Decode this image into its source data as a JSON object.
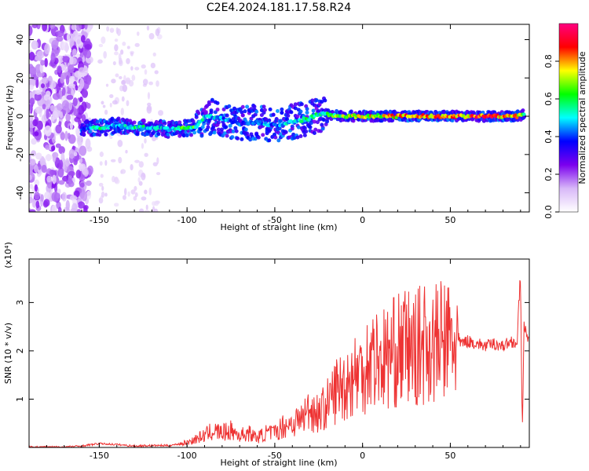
{
  "title": "C2E4.2024.181.17.58.R24",
  "chart_data": [
    {
      "type": "heatmap",
      "xlabel": "Height of straight line (km)",
      "ylabel": "Frequency (Hz)",
      "xlim": [
        -190,
        95
      ],
      "ylim": [
        -50,
        48
      ],
      "xticks": [
        -150,
        -100,
        -50,
        0,
        50
      ],
      "yticks": [
        -40,
        -20,
        0,
        20,
        40
      ],
      "colorbar": {
        "label": "Normalized spectral amplitude",
        "range": [
          0,
          1
        ],
        "ticks": [
          0.0,
          0.2,
          0.4,
          0.6,
          0.8
        ],
        "colormap": [
          "#ffffff",
          "#d8b8f8",
          "#7b00ee",
          "#0000ff",
          "#00ffff",
          "#00ff00",
          "#ffff00",
          "#ff0000",
          "#ff0080"
        ]
      },
      "ridge": {
        "x": [
          -160,
          -150,
          -140,
          -130,
          -120,
          -110,
          -100,
          -95,
          -90,
          -80,
          -70,
          -60,
          -50,
          -40,
          -30,
          -25,
          -20,
          -10,
          0,
          10,
          20,
          30,
          40,
          50,
          60,
          70,
          80,
          88,
          92
        ],
        "y": [
          -6,
          -6,
          -5,
          -6,
          -6,
          -7,
          -6,
          -6,
          0,
          -1,
          -4,
          -3,
          -5,
          -3,
          -1,
          1,
          1,
          0,
          0,
          0,
          0,
          0,
          0,
          0,
          0,
          0,
          0,
          0,
          1
        ],
        "amplitude": [
          0.35,
          0.55,
          0.45,
          0.55,
          0.5,
          0.5,
          0.65,
          0.6,
          0.5,
          0.45,
          0.4,
          0.45,
          0.45,
          0.5,
          0.55,
          0.55,
          0.6,
          0.7,
          0.75,
          0.75,
          0.8,
          0.85,
          0.85,
          0.85,
          0.85,
          0.85,
          0.85,
          0.85,
          0.5
        ]
      }
    },
    {
      "type": "line",
      "xlabel": "Height of straight line (km)",
      "ylabel": "SNR (10 * v/v)",
      "multiplier": "(x10⁴)",
      "xlim": [
        -190,
        95
      ],
      "ylim": [
        0,
        3.9
      ],
      "xticks": [
        -150,
        -100,
        -50,
        0,
        50
      ],
      "yticks": [
        1,
        2,
        3
      ],
      "color": "#ee3333",
      "x": [
        -190,
        -170,
        -160,
        -150,
        -140,
        -130,
        -120,
        -110,
        -100,
        -90,
        -85,
        -80,
        -75,
        -70,
        -65,
        -60,
        -55,
        -50,
        -45,
        -40,
        -35,
        -30,
        -25,
        -20,
        -15,
        -10,
        -5,
        0,
        5,
        10,
        15,
        20,
        25,
        30,
        35,
        40,
        45,
        50,
        55,
        60,
        65,
        70,
        75,
        80,
        85,
        88,
        90,
        91,
        92,
        95
      ],
      "y": [
        0.01,
        0.01,
        0.03,
        0.08,
        0.06,
        0.03,
        0.04,
        0.04,
        0.1,
        0.25,
        0.35,
        0.3,
        0.35,
        0.25,
        0.3,
        0.2,
        0.3,
        0.3,
        0.45,
        0.5,
        0.6,
        0.8,
        0.7,
        0.9,
        1.2,
        1.3,
        1.5,
        1.6,
        1.9,
        1.8,
        1.9,
        2.0,
        2.1,
        2.0,
        2.2,
        2.1,
        2.2,
        2.2,
        2.15,
        2.2,
        2.15,
        2.1,
        2.15,
        2.1,
        2.2,
        2.15,
        3.6,
        0.3,
        2.5,
        2.1
      ]
    }
  ]
}
